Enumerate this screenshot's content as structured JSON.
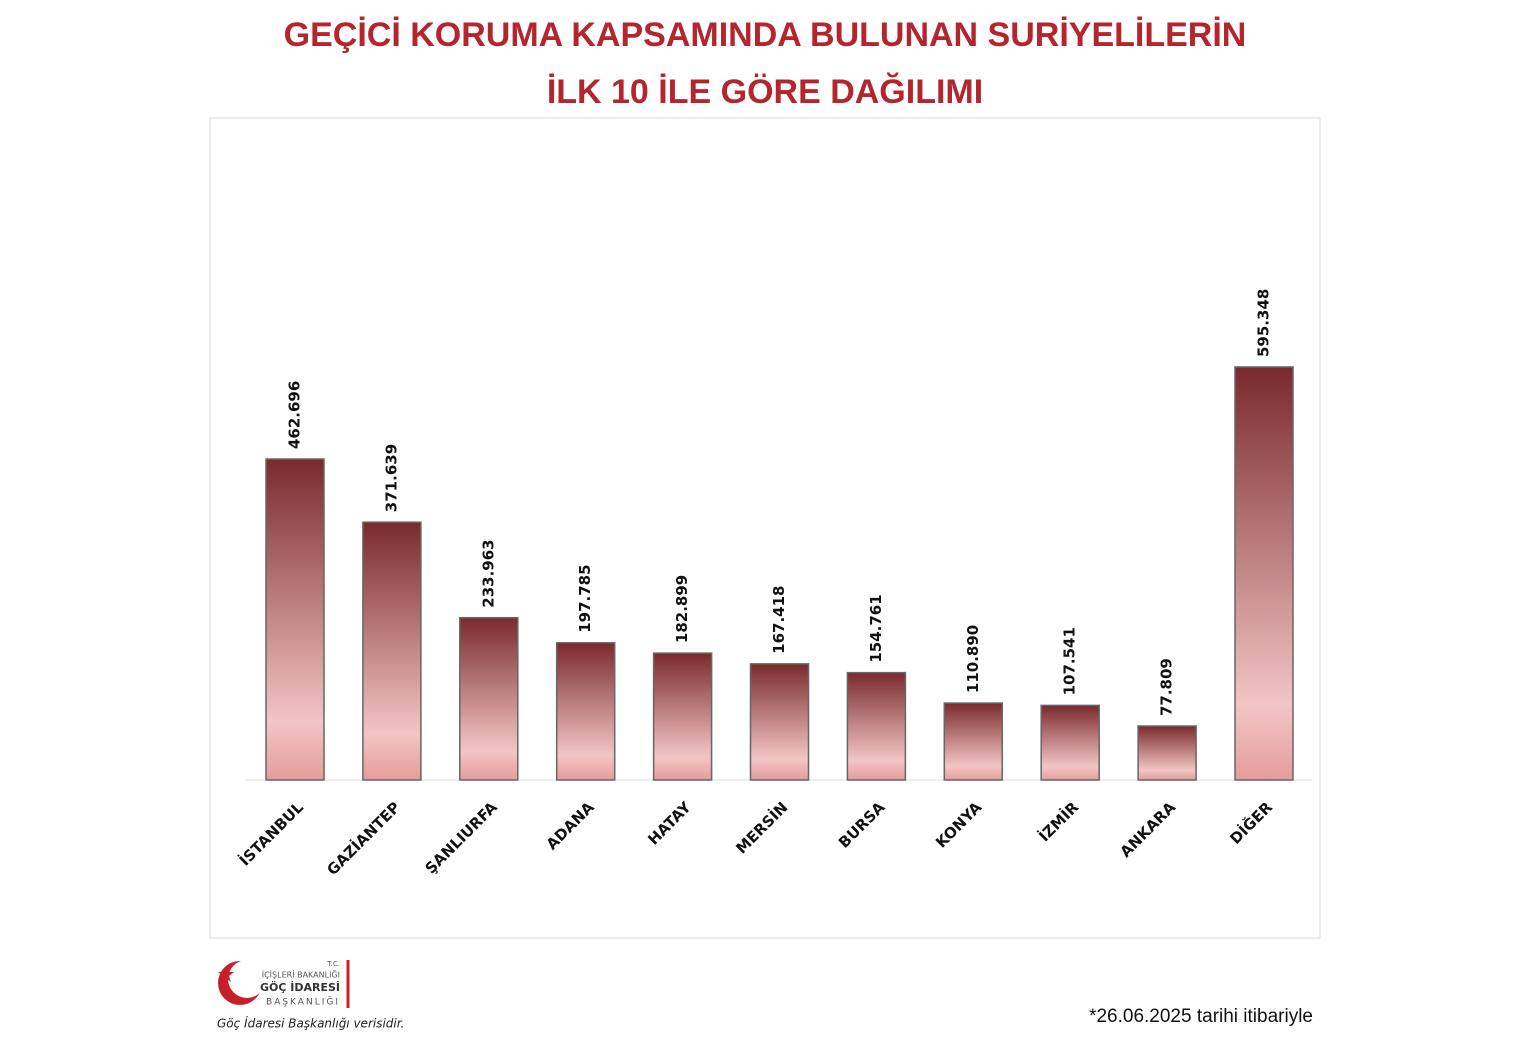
{
  "chart_data": {
    "type": "bar",
    "title": "GEÇİCİ KORUMA KAPSAMINDA BULUNAN SURİYELİLERİN",
    "subtitle": "İLK 10 İLE GÖRE DAĞILIMI",
    "categories": [
      "İSTANBUL",
      "GAZİANTEP",
      "ŞANLIURFA",
      "ADANA",
      "HATAY",
      "MERSİN",
      "BURSA",
      "KONYA",
      "İZMİR",
      "ANKARA",
      "DİĞER"
    ],
    "values": [
      462696,
      371639,
      233963,
      197785,
      182899,
      167418,
      154761,
      110890,
      107541,
      77809,
      595348
    ],
    "value_labels": [
      "462.696",
      "371.639",
      "233.963",
      "197.785",
      "182.899",
      "167.418",
      "154.761",
      "110.890",
      "107.541",
      "77.809",
      "595.348"
    ],
    "color": "#7a2a2c",
    "annotations": [
      "*26.06.2025 tarihi itibariyle"
    ]
  },
  "footer": {
    "logo_lines": [
      "T.C.",
      "İÇİŞLERİ BAKANLIĞI",
      "GÖÇ İDARESİ",
      "BAŞKANLIĞI"
    ],
    "source": "Göç İdaresi Başkanlığı verisidir."
  }
}
